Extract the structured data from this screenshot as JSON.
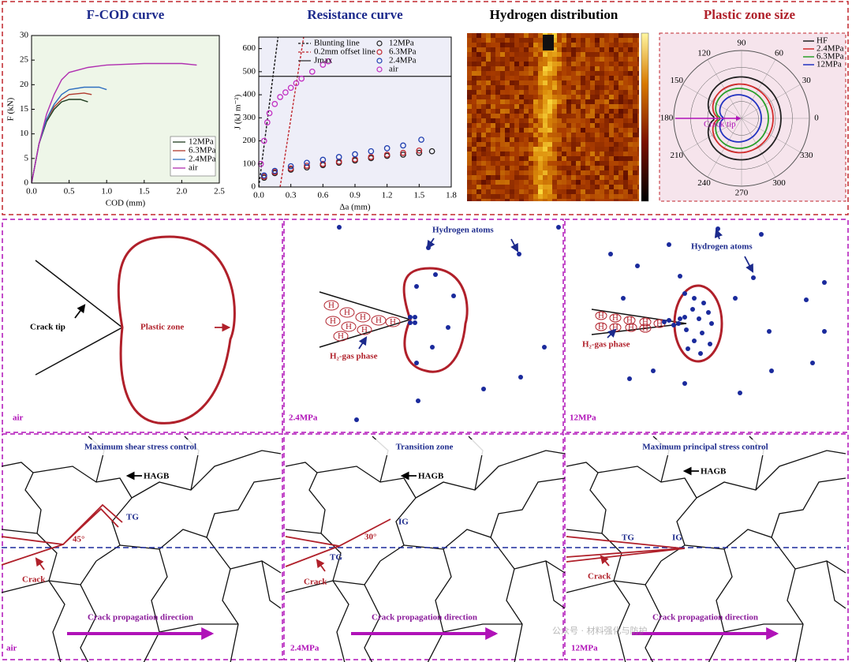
{
  "chart_data": [
    {
      "type": "line",
      "title": "F-COD curve",
      "title_color": "#1c2a8c",
      "xlabel": "COD (mm)",
      "ylabel": "F (kN)",
      "xlim": [
        0,
        2.5
      ],
      "ylim": [
        0,
        30
      ],
      "xticks": [
        {
          "value": 0,
          "label": "0.0"
        },
        0.5,
        {
          "value": 1,
          "label": "1.0"
        },
        1.5,
        {
          "value": 2,
          "label": "2.0"
        },
        2.5
      ],
      "yticks": [
        0,
        5,
        10,
        15,
        20,
        25,
        30
      ],
      "legend": "lower right",
      "background": "#eef6e8",
      "series": [
        {
          "name": "12MPa",
          "color": "#1f3b1f",
          "style": "solid",
          "x": [
            0,
            0.1,
            0.2,
            0.3,
            0.4,
            0.5,
            0.65,
            0.75
          ],
          "values": [
            0,
            8,
            12.5,
            15,
            16.5,
            17,
            17,
            16.5
          ]
        },
        {
          "name": "6.3MPa",
          "color": "#b03a2e",
          "style": "solid",
          "x": [
            0,
            0.1,
            0.2,
            0.3,
            0.4,
            0.5,
            0.7,
            0.8
          ],
          "values": [
            0,
            8,
            13,
            15.5,
            17,
            18,
            18.3,
            18
          ]
        },
        {
          "name": "2.4MPa",
          "color": "#2f6fc0",
          "style": "solid",
          "x": [
            0,
            0.1,
            0.2,
            0.3,
            0.4,
            0.5,
            0.7,
            0.9,
            1.0
          ],
          "values": [
            0,
            8,
            13,
            16,
            18,
            19,
            19.5,
            19.5,
            19
          ]
        },
        {
          "name": "air",
          "color": "#b02fb0",
          "style": "solid",
          "x": [
            0,
            0.1,
            0.2,
            0.3,
            0.4,
            0.5,
            0.75,
            1.0,
            1.5,
            2.0,
            2.2
          ],
          "values": [
            0,
            8,
            14,
            18,
            21,
            22.5,
            23.5,
            24,
            24.3,
            24.3,
            24
          ]
        }
      ]
    },
    {
      "type": "line",
      "title": "Resistance curve",
      "title_color": "#1c2a8c",
      "xlabel": "Δa (mm)",
      "ylabel": "J (kJ m⁻²)",
      "xlim": [
        0,
        1.8
      ],
      "ylim": [
        0,
        650
      ],
      "xticks": [
        {
          "value": 0,
          "label": "0.0"
        },
        0.3,
        0.6,
        0.9,
        1.2,
        1.5,
        1.8
      ],
      "yticks": [
        0,
        100,
        200,
        300,
        400,
        500,
        600
      ],
      "legend": "upper right",
      "background": "#eeeef8",
      "series": [
        {
          "name": "Blunting line",
          "color": "#111111",
          "style": "dash",
          "x": [
            0,
            0.18
          ],
          "values": [
            0,
            650
          ]
        },
        {
          "name": "0.2mm offset line",
          "color": "#c0262d",
          "style": "dash",
          "x": [
            0.2,
            0.42
          ],
          "values": [
            0,
            650
          ]
        },
        {
          "name": "Jmax",
          "color": "#333333",
          "style": "solid",
          "x": [
            0,
            1.8
          ],
          "values": [
            480,
            480
          ]
        },
        {
          "name": "12MPa",
          "color": "#222222",
          "style": "marker",
          "x": [
            0.05,
            0.15,
            0.3,
            0.45,
            0.6,
            0.75,
            0.9,
            1.05,
            1.2,
            1.35,
            1.5,
            1.62
          ],
          "values": [
            40,
            60,
            75,
            85,
            95,
            105,
            115,
            125,
            135,
            140,
            148,
            155
          ]
        },
        {
          "name": "6.3MPa",
          "color": "#c0262d",
          "style": "marker",
          "x": [
            0.05,
            0.15,
            0.3,
            0.45,
            0.6,
            0.75,
            0.9,
            1.05,
            1.2,
            1.35,
            1.5
          ],
          "values": [
            45,
            65,
            80,
            92,
            100,
            110,
            120,
            130,
            140,
            148,
            158
          ]
        },
        {
          "name": "2.4MPa",
          "color": "#1f3fb0",
          "style": "marker",
          "x": [
            0.05,
            0.15,
            0.3,
            0.45,
            0.6,
            0.75,
            0.9,
            1.05,
            1.2,
            1.35,
            1.52
          ],
          "values": [
            50,
            70,
            90,
            105,
            118,
            130,
            142,
            155,
            168,
            180,
            205
          ]
        },
        {
          "name": "air",
          "color": "#c22fc2",
          "style": "marker",
          "x": [
            0.02,
            0.05,
            0.08,
            0.1,
            0.15,
            0.2,
            0.25,
            0.3,
            0.35,
            0.4,
            0.5,
            0.6,
            0.65
          ],
          "values": [
            100,
            200,
            280,
            320,
            360,
            390,
            410,
            430,
            450,
            470,
            500,
            530,
            545
          ]
        }
      ]
    }
  ],
  "hydrogen_map": {
    "title": "Hydrogen distribution"
  },
  "polar": {
    "title": "Plastic zone size",
    "title_color": "#b0202a",
    "annotation": "Crack tip",
    "angles": [
      0,
      30,
      60,
      90,
      120,
      150,
      180,
      210,
      240,
      270,
      300,
      330
    ],
    "series": [
      {
        "name": "HF",
        "color": "#222222"
      },
      {
        "name": "2.4MPa",
        "color": "#d22b2b"
      },
      {
        "name": "6.3MPa",
        "color": "#2aa02a"
      },
      {
        "name": "12MPa",
        "color": "#2233c0"
      }
    ]
  },
  "mechanism": [
    {
      "condition": "air",
      "crack_tip": "Crack tip",
      "plastic_zone": "Plastic zone"
    },
    {
      "condition": "2.4MPa",
      "hydrogen_atoms": "Hydrogen atoms",
      "gas_phase": "H₂-gas phase",
      "atom": "H"
    },
    {
      "condition": "12MPa",
      "hydrogen_atoms": "Hydrogen atoms",
      "gas_phase": "H₂-gas phase",
      "atom": "H"
    }
  ],
  "fracture": [
    {
      "title": "Maximum shear stress control",
      "boundary": "HAGB",
      "tg": "TG",
      "angle": "45°",
      "crack": "Crack",
      "direction": "Crack propagation direction",
      "condition": "air"
    },
    {
      "title": "Transition zone",
      "boundary": "HAGB",
      "ig": "IG",
      "angle": "30°",
      "tg": "TG",
      "crack": "Crack",
      "direction": "Crack propagation direction",
      "condition": "2.4MPa"
    },
    {
      "title": "Maximum principal stress control",
      "boundary": "HAGB",
      "tg": "TG",
      "ig": "IG",
      "crack": "Crack",
      "direction": "Crack propagation direction",
      "condition": "12MPa"
    }
  ],
  "watermark": "公众号 · 材料强化与防护"
}
